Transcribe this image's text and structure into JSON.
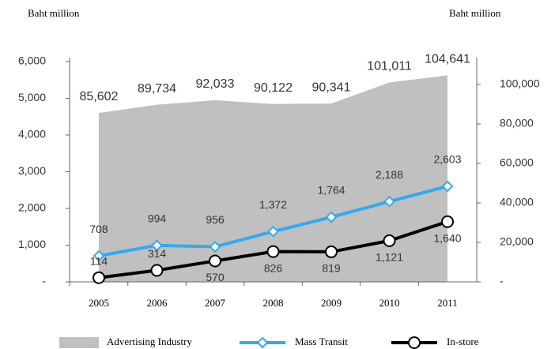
{
  "chart_data": {
    "type": "line",
    "y_label": "Baht million",
    "y2_label": "Baht million",
    "categories": [
      "2005",
      "2006",
      "2007",
      "2008",
      "2009",
      "2010",
      "2011"
    ],
    "series": [
      {
        "name": "Advertising Industry",
        "type": "area",
        "axis": "y2",
        "color": "#c0c0c0",
        "values": [
          85602,
          89734,
          92033,
          90122,
          90341,
          101011,
          104641
        ],
        "value_labels": [
          "85,602",
          "89,734",
          "92,033",
          "90,122",
          "90,341",
          "101,011",
          "104,641"
        ]
      },
      {
        "name": "Mass Transit",
        "type": "line",
        "color": "#33aaee",
        "marker": "diamond",
        "values": [
          708,
          994,
          956,
          1372,
          1764,
          2188,
          2603
        ],
        "value_labels": [
          "708",
          "994",
          "956",
          "1,372",
          "1,764",
          "2,188",
          "2,603"
        ]
      },
      {
        "name": "In-store",
        "type": "line",
        "color": "#000000",
        "marker": "circle",
        "values": [
          114,
          314,
          570,
          826,
          819,
          1121,
          1640
        ],
        "value_labels": [
          "114",
          "314",
          "570",
          "826",
          "819",
          "1,121",
          "1,640"
        ]
      }
    ],
    "ylim": [
      0,
      6000
    ],
    "yticks": [
      {
        "value": 0,
        "label": "-"
      },
      {
        "value": 1000,
        "label": "1,000"
      },
      {
        "value": 2000,
        "label": "2,000"
      },
      {
        "value": 3000,
        "label": "3,000"
      },
      {
        "value": 4000,
        "label": "4,000"
      },
      {
        "value": 5000,
        "label": "5,000"
      },
      {
        "value": 6000,
        "label": "6,000"
      }
    ],
    "y2lim": [
      0,
      111600
    ],
    "y2ticks": [
      {
        "value": 0,
        "label": "-"
      },
      {
        "value": 20000,
        "label": "20,000"
      },
      {
        "value": 40000,
        "label": "40,000"
      },
      {
        "value": 60000,
        "label": "60,000"
      },
      {
        "value": 80000,
        "label": "80,000"
      },
      {
        "value": 100000,
        "label": "100,000"
      }
    ],
    "legend": "bottom"
  }
}
